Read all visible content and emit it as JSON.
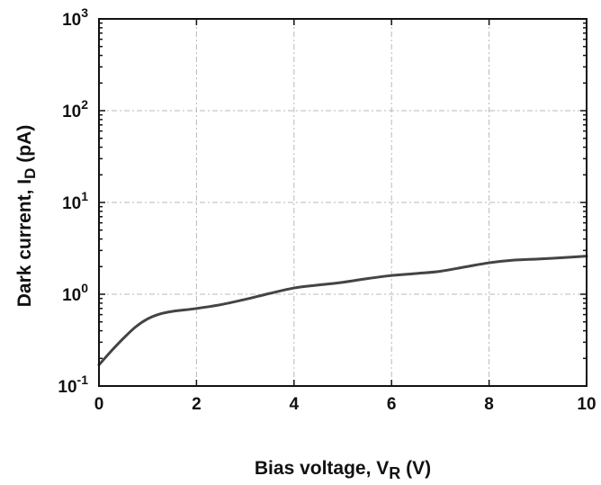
{
  "chart_data": {
    "type": "line",
    "xlabel": {
      "main": "Bias voltage, V",
      "sub": "R",
      "unit": " (V)"
    },
    "ylabel": {
      "main": "Dark current, I",
      "sub": "D",
      "unit": " (pA)"
    },
    "xlim": [
      0,
      10
    ],
    "ylim": [
      0.1,
      1000
    ],
    "yscale": "log",
    "grid": true,
    "x_ticks": [
      "0",
      "2",
      "4",
      "6",
      "8",
      "10"
    ],
    "y_ticks": [
      {
        "value": 0.1,
        "base": "10",
        "exp": "-1"
      },
      {
        "value": 1,
        "base": "10",
        "exp": "0"
      },
      {
        "value": 10,
        "base": "10",
        "exp": "1"
      },
      {
        "value": 100,
        "base": "10",
        "exp": "2"
      },
      {
        "value": 1000,
        "base": "10",
        "exp": "3"
      }
    ],
    "series": [
      {
        "x": [
          0,
          0.25,
          0.5,
          0.75,
          1.0,
          1.25,
          1.5,
          2.0,
          2.5,
          3.0,
          3.5,
          4.0,
          4.5,
          5.0,
          5.5,
          6.0,
          6.5,
          7.0,
          7.5,
          8.0,
          8.5,
          9.0,
          9.5,
          10.0
        ],
        "values": [
          0.17,
          0.24,
          0.33,
          0.44,
          0.54,
          0.61,
          0.65,
          0.7,
          0.77,
          0.88,
          1.02,
          1.17,
          1.26,
          1.35,
          1.48,
          1.6,
          1.68,
          1.78,
          1.98,
          2.2,
          2.35,
          2.42,
          2.5,
          2.6
        ],
        "color": "#444444"
      }
    ]
  }
}
